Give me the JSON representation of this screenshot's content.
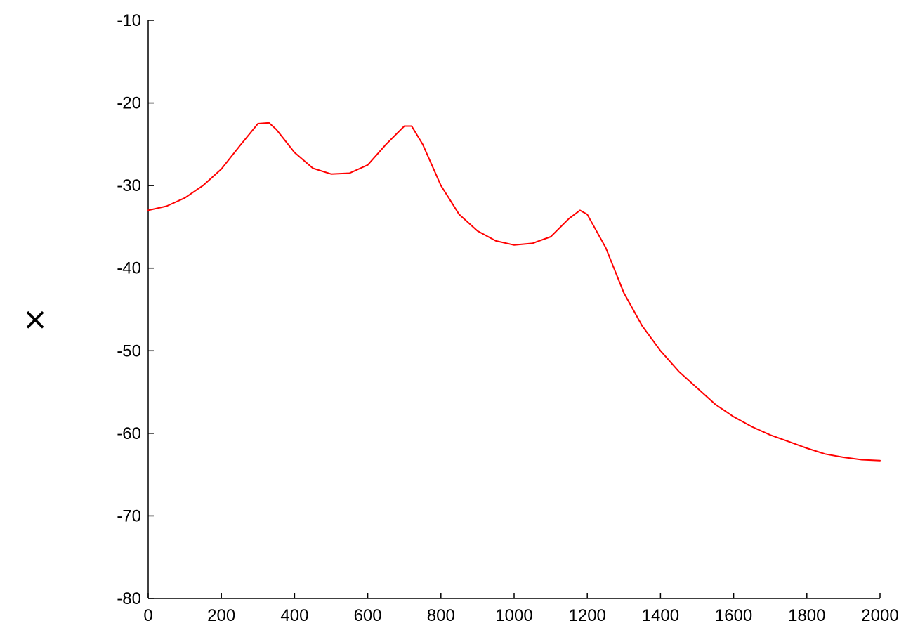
{
  "chart_data": {
    "type": "line",
    "title": "",
    "xlabel": "",
    "ylabel": "×",
    "xlim": [
      0,
      2000
    ],
    "ylim": [
      -80,
      -10
    ],
    "x_ticks": [
      "0",
      "200",
      "400",
      "600",
      "800",
      "1000",
      "1200",
      "1400",
      "1600",
      "1800",
      "2000"
    ],
    "y_ticks": [
      "-10",
      "-20",
      "-30",
      "-40",
      "-50",
      "-60",
      "-70",
      "-80"
    ],
    "grid": false,
    "legend": "none",
    "series": [
      {
        "color": "#ff0000",
        "x": [
          0,
          50,
          100,
          150,
          200,
          250,
          300,
          330,
          350,
          400,
          450,
          500,
          550,
          600,
          650,
          700,
          720,
          750,
          800,
          850,
          900,
          950,
          1000,
          1050,
          1100,
          1150,
          1180,
          1200,
          1250,
          1300,
          1350,
          1400,
          1450,
          1500,
          1550,
          1600,
          1650,
          1700,
          1750,
          1800,
          1850,
          1900,
          1950,
          2000
        ],
        "y": [
          -33.0,
          -32.5,
          -31.5,
          -30.0,
          -28.0,
          -25.2,
          -22.5,
          -22.4,
          -23.2,
          -26.0,
          -27.9,
          -28.6,
          -28.5,
          -27.5,
          -25.0,
          -22.8,
          -22.8,
          -25.0,
          -30.0,
          -33.5,
          -35.5,
          -36.7,
          -37.2,
          -37.0,
          -36.2,
          -34.0,
          -33.0,
          -33.5,
          -37.5,
          -43.0,
          -47.0,
          -50.0,
          -52.5,
          -54.5,
          -56.5,
          -58.0,
          -59.2,
          -60.2,
          -61.0,
          -61.8,
          -62.5,
          -62.9,
          -63.2,
          -63.3
        ]
      }
    ]
  }
}
